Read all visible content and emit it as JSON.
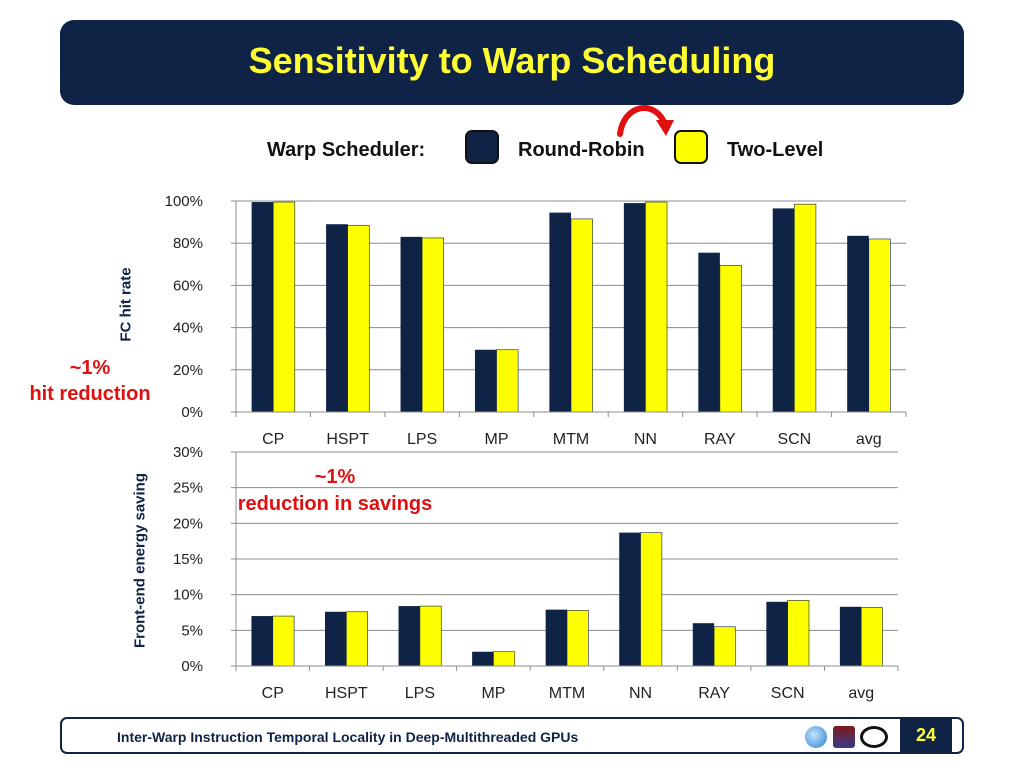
{
  "title": "Sensitivity to Warp Scheduling",
  "legend": {
    "label": "Warp Scheduler:",
    "series": [
      {
        "name": "Round-Robin",
        "color": "#0f2347"
      },
      {
        "name": "Two-Level",
        "color": "#ffff00"
      }
    ]
  },
  "annotations": {
    "top_line1": "~1%",
    "top_line2": "hit reduction",
    "bottom_line1": "~1%",
    "bottom_line2": "reduction in savings",
    "color": "#e01010"
  },
  "chart_data": [
    {
      "type": "bar",
      "ylabel": "FC hit rate",
      "categories": [
        "CP",
        "HSPT",
        "LPS",
        "MP",
        "MTM",
        "NN",
        "RAY",
        "SCN",
        "avg"
      ],
      "ylim": [
        0,
        100
      ],
      "yticks": [
        "0%",
        "20%",
        "40%",
        "60%",
        "80%",
        "100%"
      ],
      "grid": true,
      "series": [
        {
          "name": "Round-Robin",
          "values": [
            99.5,
            89,
            83,
            29.5,
            94.5,
            99,
            75.5,
            96.5,
            83.5
          ]
        },
        {
          "name": "Two-Level",
          "values": [
            99.5,
            88.5,
            82.5,
            29.5,
            91.5,
            99.5,
            69.5,
            98.5,
            82
          ]
        }
      ]
    },
    {
      "type": "bar",
      "ylabel": "Front-end energy saving",
      "categories": [
        "CP",
        "HSPT",
        "LPS",
        "MP",
        "MTM",
        "NN",
        "RAY",
        "SCN",
        "avg"
      ],
      "ylim": [
        0,
        30
      ],
      "yticks": [
        "0%",
        "5%",
        "10%",
        "15%",
        "20%",
        "25%",
        "30%"
      ],
      "grid": true,
      "series": [
        {
          "name": "Round-Robin",
          "values": [
            7,
            7.6,
            8.4,
            2,
            7.9,
            18.7,
            6,
            9,
            8.3
          ]
        },
        {
          "name": "Two-Level",
          "values": [
            7,
            7.6,
            8.4,
            2,
            7.8,
            18.7,
            5.5,
            9.2,
            8.2
          ]
        }
      ]
    }
  ],
  "footer": {
    "text": "Inter-Warp Instruction Temporal Locality in Deep-Multithreaded GPUs",
    "page": "24"
  }
}
